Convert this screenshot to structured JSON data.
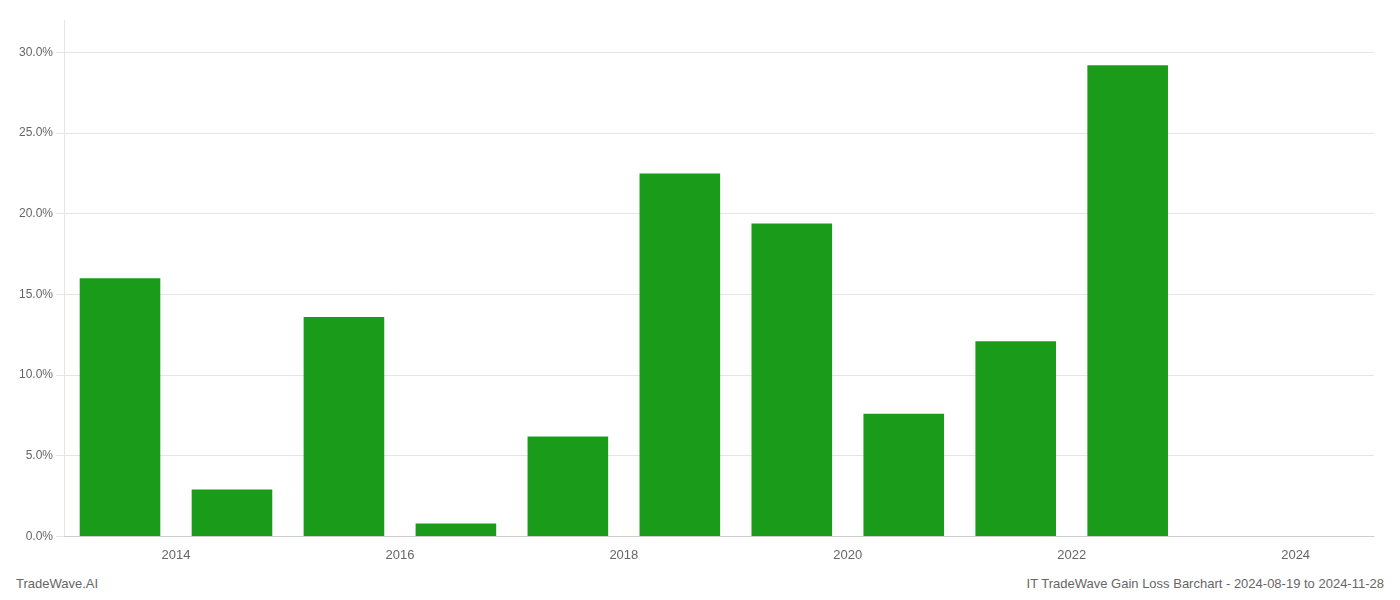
{
  "chart_data": {
    "type": "bar",
    "x": [
      2013,
      2014,
      2015,
      2016,
      2017,
      2018,
      2019,
      2020,
      2021,
      2022
    ],
    "values": [
      0.16,
      0.029,
      0.136,
      0.008,
      0.062,
      0.225,
      0.194,
      0.076,
      0.121,
      0.292
    ],
    "color": "#1a9c1a",
    "xlim": [
      2012.5,
      2024.2
    ],
    "xticks": [
      {
        "value": 2013.5,
        "label": "2014"
      },
      {
        "value": 2015.5,
        "label": "2016"
      },
      {
        "value": 2017.5,
        "label": "2018"
      },
      {
        "value": 2019.5,
        "label": "2020"
      },
      {
        "value": 2021.5,
        "label": "2022"
      },
      {
        "value": 2023.5,
        "label": "2024"
      }
    ],
    "ylim": [
      0,
      0.32
    ],
    "yticks": [
      {
        "value": 0.0,
        "label": "0.0%"
      },
      {
        "value": 0.05,
        "label": "5.0%"
      },
      {
        "value": 0.1,
        "label": "10.0%"
      },
      {
        "value": 0.15,
        "label": "15.0%"
      },
      {
        "value": 0.2,
        "label": "20.0%"
      },
      {
        "value": 0.25,
        "label": "25.0%"
      },
      {
        "value": 0.3,
        "label": "30.0%"
      }
    ],
    "grid": true,
    "annotations": [
      "TradeWave.AI",
      "IT TradeWave Gain Loss Barchart - 2024-08-19 to 2024-11-28"
    ]
  }
}
